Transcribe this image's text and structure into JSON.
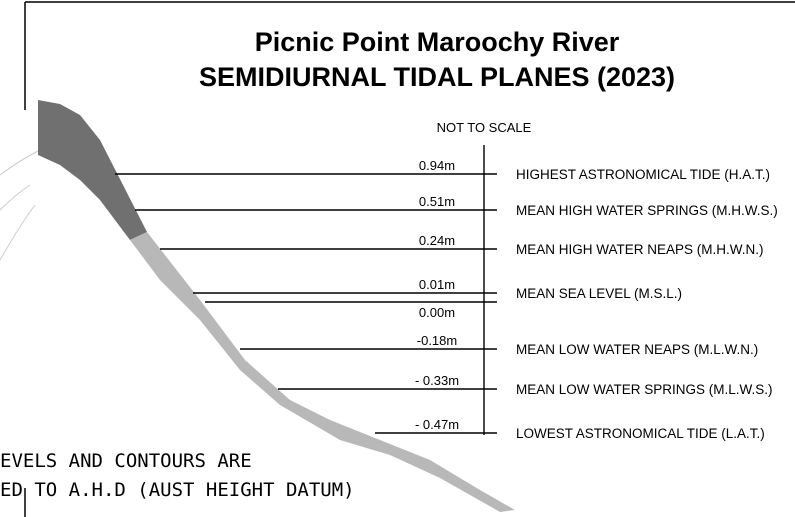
{
  "title": [
    "Picnic Point Maroochy River",
    "SEMIDIURNAL TIDAL PLANES (2023)"
  ],
  "scale_note": "NOT TO SCALE",
  "levels": [
    {
      "value": "0.94m",
      "name": "HIGHEST ASTRONOMICAL TIDE (H.A.T.)"
    },
    {
      "value": "0.51m",
      "name": "MEAN HIGH WATER SPRINGS (M.H.W.S.)"
    },
    {
      "value": "0.24m",
      "name": "MEAN HIGH WATER NEAPS (M.H.W.N.)"
    },
    {
      "value": "0.01m",
      "name": "MEAN SEA LEVEL (M.S.L.)"
    },
    {
      "value": "0.00m"
    },
    {
      "value": "-0.18m",
      "name": "MEAN LOW WATER NEAPS (M.L.W.N.)"
    },
    {
      "value": "- 0.33m",
      "name": "MEAN LOW WATER SPRINGS (M.L.W.S.)"
    },
    {
      "value": "- 0.47m",
      "name": "LOWEST ASTRONOMICAL TIDE (L.A.T.)"
    }
  ],
  "footnote": [
    "EVELS AND CONTOURS ARE",
    "ED TO A.H.D (AUST HEIGHT DATUM)"
  ]
}
